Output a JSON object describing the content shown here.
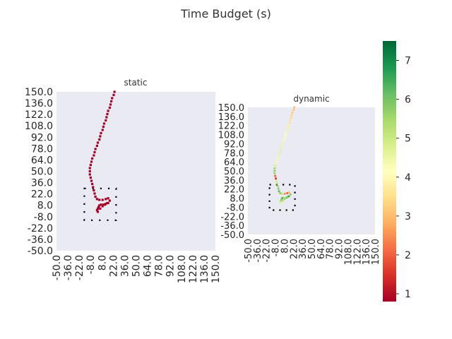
{
  "figure": {
    "title": "Time Budget (s)"
  },
  "colors": {
    "panel_bg": "#eaeaf2",
    "path_static": "#a50026",
    "colormap": "RdYlGn"
  },
  "chart_data": [
    {
      "type": "heatmap",
      "title": "static",
      "xlim": [
        -50,
        150
      ],
      "ylim": [
        -50,
        150
      ],
      "x_ticks": [
        "-50.0",
        "-36.0",
        "-22.0",
        "-8.0",
        "8.0",
        "22.0",
        "36.0",
        "50.0",
        "64.0",
        "78.0",
        "92.0",
        "108.0",
        "122.0",
        "136.0",
        "150.0"
      ],
      "y_ticks": [
        "150.0",
        "136.0",
        "122.0",
        "108.0",
        "92.0",
        "78.0",
        "64.0",
        "50.0",
        "36.0",
        "22.0",
        "8.0",
        "-8.0",
        "-22.0",
        "-36.0",
        "-50.0"
      ],
      "box": {
        "x": [
          -16,
          24
        ],
        "y": [
          -10,
          30
        ]
      },
      "path": [
        [
          23,
          150
        ],
        [
          22,
          146
        ],
        [
          20,
          142
        ],
        [
          19,
          138
        ],
        [
          18,
          134
        ],
        [
          17,
          130
        ],
        [
          15,
          126
        ],
        [
          14,
          122
        ],
        [
          13,
          118
        ],
        [
          12,
          114
        ],
        [
          10,
          110
        ],
        [
          9,
          106
        ],
        [
          8,
          102
        ],
        [
          6,
          98
        ],
        [
          5,
          94
        ],
        [
          4,
          90
        ],
        [
          2,
          86
        ],
        [
          1,
          82
        ],
        [
          -1,
          78
        ],
        [
          -2,
          74
        ],
        [
          -3,
          70
        ],
        [
          -5,
          66
        ],
        [
          -6,
          62
        ],
        [
          -7,
          58
        ],
        [
          -8,
          54
        ],
        [
          -8,
          50
        ],
        [
          -8,
          46
        ],
        [
          -7,
          42
        ],
        [
          -6,
          38
        ],
        [
          -5,
          34
        ],
        [
          -4,
          30
        ],
        [
          -3,
          26
        ],
        [
          -2,
          22
        ],
        [
          -1,
          18
        ],
        [
          1,
          15
        ],
        [
          4,
          14
        ],
        [
          8,
          14
        ],
        [
          12,
          15
        ],
        [
          15,
          16
        ],
        [
          17,
          13
        ],
        [
          15,
          10
        ],
        [
          12,
          9
        ],
        [
          9,
          8
        ],
        [
          6,
          8
        ],
        [
          4,
          7
        ],
        [
          3,
          5
        ],
        [
          2,
          3
        ],
        [
          1,
          1
        ],
        [
          2,
          -1
        ],
        [
          5,
          3
        ],
        [
          8,
          6
        ],
        [
          11,
          8
        ],
        [
          14,
          10
        ]
      ]
    },
    {
      "type": "heatmap",
      "title": "dynamic",
      "xlim": [
        -50,
        150
      ],
      "ylim": [
        -50,
        150
      ],
      "x_ticks": [
        "-50.0",
        "-36.0",
        "-22.0",
        "-8.0",
        "8.0",
        "22.0",
        "36.0",
        "50.0",
        "64.0",
        "78.0",
        "92.0",
        "108.0",
        "122.0",
        "136.0",
        "150.0"
      ],
      "y_ticks": [
        "150.0",
        "136.0",
        "122.0",
        "108.0",
        "92.0",
        "78.0",
        "64.0",
        "50.0",
        "36.0",
        "22.0",
        "8.0",
        "-8.0",
        "-22.0",
        "-36.0",
        "-50.0"
      ],
      "box": {
        "x": [
          -16,
          24
        ],
        "y": [
          -10,
          30
        ]
      },
      "colorbar": {
        "min": 0.8,
        "max": 7.5,
        "ticks": [
          1,
          2,
          3,
          4,
          5,
          6,
          7
        ]
      },
      "path": [
        [
          23,
          150,
          3.0
        ],
        [
          22,
          146,
          3.1
        ],
        [
          20,
          142,
          3.2
        ],
        [
          19,
          138,
          3.3
        ],
        [
          18,
          134,
          3.4
        ],
        [
          17,
          130,
          3.5
        ],
        [
          15,
          126,
          3.6
        ],
        [
          14,
          122,
          3.7
        ],
        [
          13,
          118,
          3.8
        ],
        [
          12,
          114,
          3.9
        ],
        [
          10,
          110,
          4.0
        ],
        [
          9,
          106,
          4.1
        ],
        [
          8,
          102,
          4.2
        ],
        [
          6,
          98,
          4.3
        ],
        [
          5,
          94,
          4.4
        ],
        [
          4,
          90,
          4.5
        ],
        [
          2,
          86,
          4.6
        ],
        [
          1,
          82,
          4.7
        ],
        [
          -1,
          78,
          4.6
        ],
        [
          -2,
          74,
          4.5
        ],
        [
          -3,
          70,
          4.4
        ],
        [
          -5,
          66,
          4.3
        ],
        [
          -6,
          62,
          4.4
        ],
        [
          -7,
          58,
          4.8
        ],
        [
          -8,
          54,
          5.5
        ],
        [
          -8,
          50,
          5.8
        ],
        [
          -8,
          46,
          5.6
        ],
        [
          -7,
          42,
          2.0
        ],
        [
          -6,
          38,
          1.5
        ],
        [
          -5,
          34,
          4.9
        ],
        [
          -4,
          30,
          5.3
        ],
        [
          -3,
          26,
          5.6
        ],
        [
          -2,
          22,
          5.8
        ],
        [
          -1,
          18,
          6.2
        ],
        [
          1,
          15,
          5.8
        ],
        [
          4,
          14,
          5.0
        ],
        [
          8,
          14,
          2.5
        ],
        [
          12,
          15,
          2.0
        ],
        [
          15,
          16,
          3.0
        ],
        [
          17,
          13,
          5.8
        ],
        [
          15,
          10,
          5.5
        ],
        [
          12,
          9,
          4.8
        ],
        [
          9,
          8,
          5.0
        ],
        [
          6,
          8,
          5.2
        ],
        [
          4,
          7,
          6.5
        ],
        [
          3,
          5,
          6.0
        ],
        [
          2,
          3,
          5.5
        ],
        [
          1,
          1,
          5.0
        ],
        [
          2,
          -1,
          4.6
        ],
        [
          5,
          3,
          5.2
        ],
        [
          8,
          6,
          5.6
        ],
        [
          11,
          8,
          6.0
        ],
        [
          14,
          10,
          6.5
        ]
      ]
    }
  ]
}
